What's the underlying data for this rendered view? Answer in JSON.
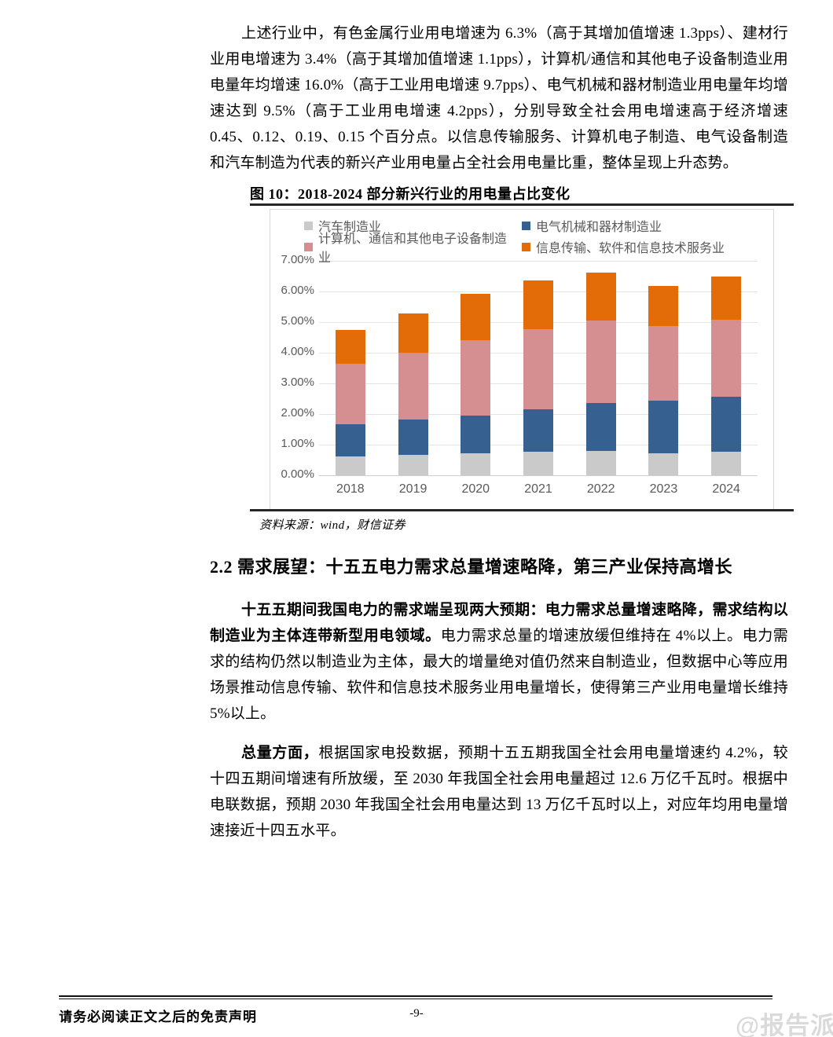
{
  "intro": {
    "text": "上述行业中，有色金属行业用电增速为 6.3%（高于其增加值增速 1.3pps）、建材行业用电增速为 3.4%（高于其增加值增速 1.1pps），计算机/通信和其他电子设备制造业用电量年均增速 16.0%（高于工业用电增速 9.7pps）、电气机械和器材制造业用电量年均增速达到 9.5%（高于工业用电增速 4.2pps），分别导致全社会用电增速高于经济增速 0.45、0.12、0.19、0.15 个百分点。以信息传输服务、计算机电子制造、电气设备制造和汽车制造为代表的新兴产业用电量占全社会用电量比重，整体呈现上升态势。"
  },
  "figure": {
    "title": "图 10：2018-2024 部分新兴行业的用电量占比变化",
    "source": "资料来源：wind，财信证券"
  },
  "chart_data": {
    "type": "bar",
    "stacked": true,
    "title": "图 10：2018-2024 部分新兴行业的用电量占比变化",
    "categories": [
      "2018",
      "2019",
      "2020",
      "2021",
      "2022",
      "2023",
      "2024"
    ],
    "series": [
      {
        "name": "汽车制造业",
        "color": "#cacaca",
        "values": [
          0.62,
          0.66,
          0.73,
          0.77,
          0.79,
          0.73,
          0.77
        ]
      },
      {
        "name": "电气机械和器材制造业",
        "color": "#35608f",
        "values": [
          1.05,
          1.15,
          1.22,
          1.38,
          1.57,
          1.7,
          1.8
        ]
      },
      {
        "name": "计算机、通信和其他电子设备制造业",
        "color": "#d58f90",
        "values": [
          1.97,
          2.19,
          2.45,
          2.62,
          2.69,
          2.44,
          2.5
        ]
      },
      {
        "name": "信息传输、软件和信息技术服务业",
        "color": "#e36c09",
        "values": [
          1.1,
          1.28,
          1.52,
          1.58,
          1.57,
          1.3,
          1.43
        ]
      }
    ],
    "stack_totals": [
      4.74,
      5.28,
      5.92,
      6.35,
      6.62,
      6.17,
      6.5
    ],
    "ylim": [
      0,
      7
    ],
    "yticks": [
      "7.00%",
      "6.00%",
      "5.00%",
      "4.00%",
      "3.00%",
      "2.00%",
      "1.00%",
      "0.00%"
    ],
    "xlabel": "",
    "ylabel": "",
    "grid": true,
    "legend_position": "top"
  },
  "section": {
    "heading": "2.2 需求展望：十五五电力需求总量增速略降，第三产业保持高增长"
  },
  "paragraphs": {
    "p1": {
      "bold_lead": "十五五期间我国电力的需求端呈现两大预期：电力需求总量增速略降，需求结构以制造业为主体连带新型用电领域。",
      "rest": "电力需求总量的增速放缓但维持在 4%以上。电力需求的结构仍然以制造业为主体，最大的增量绝对值仍然来自制造业，但数据中心等应用场景推动信息传输、软件和信息技术服务业用电量增长，使得第三产业用电量增长维持 5%以上。"
    },
    "p2": {
      "bold_lead": "总量方面，",
      "rest": "根据国家电投数据，预期十五五期我国全社会用电量增速约 4.2%，较十四五期间增速有所放缓，至 2030 年我国全社会用电量超过 12.6 万亿千瓦时。根据中电联数据，预期 2030 年我国全社会用电量达到 13 万亿千瓦时以上，对应年均用电量增速接近十四五水平。"
    }
  },
  "footer": {
    "disclaimer": "请务必阅读正文之后的免责声明",
    "page_number": "-9-",
    "watermark": "@报告派"
  }
}
